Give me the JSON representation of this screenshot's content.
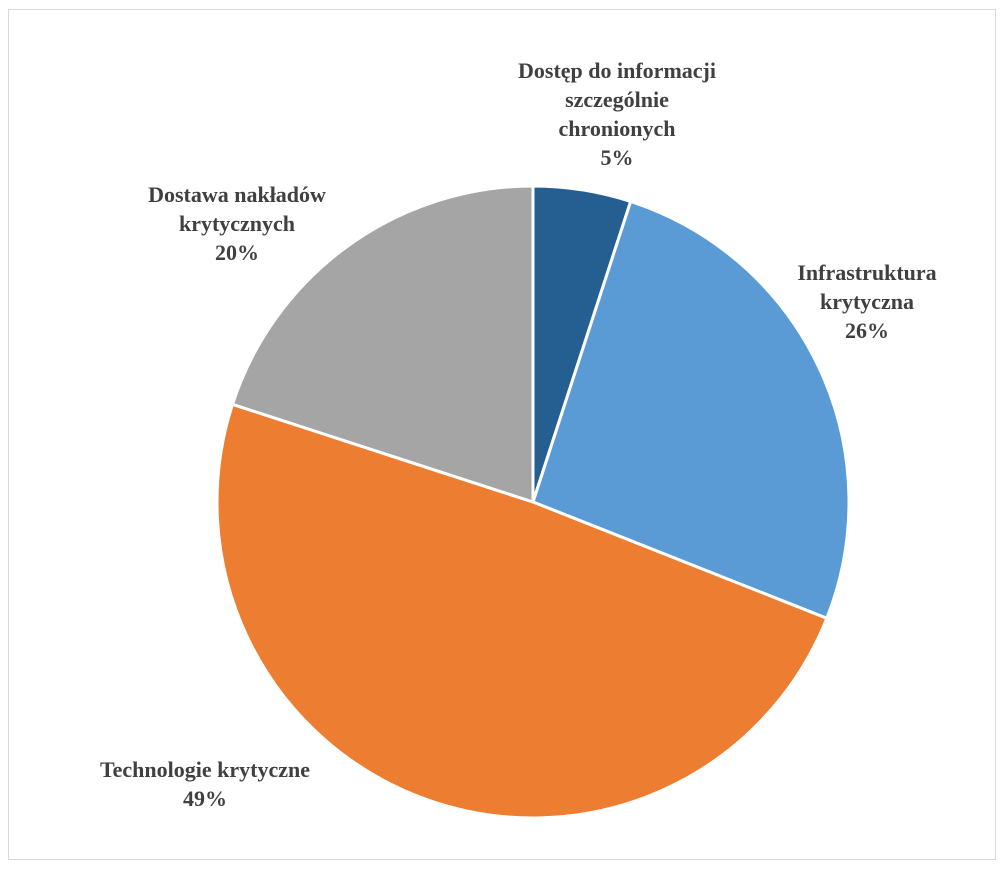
{
  "chart_data": {
    "type": "pie",
    "title": "",
    "slices": [
      {
        "label": "Dostęp do informacji szczególnie chronionych",
        "label_lines": [
          "Dostęp do informacji",
          "szczególnie",
          "chronionych"
        ],
        "value": 5,
        "value_text": "5%",
        "color": "#255e91"
      },
      {
        "label": "Infrastruktura krytyczna",
        "label_lines": [
          "Infrastruktura",
          "krytyczna"
        ],
        "value": 26,
        "value_text": "26%",
        "color": "#5b9bd5"
      },
      {
        "label": "Technologie krytyczne",
        "label_lines": [
          "Technologie krytyczne"
        ],
        "value": 49,
        "value_text": "49%",
        "color": "#ed7d31"
      },
      {
        "label": "Dostawa nakładów krytycznych",
        "label_lines": [
          "Dostawa nakładów",
          "krytycznych"
        ],
        "value": 20,
        "value_text": "20%",
        "color": "#a5a5a5"
      }
    ],
    "start_angle_deg": 0,
    "direction": "clockwise",
    "legend": "none",
    "data_labels": "outside"
  }
}
